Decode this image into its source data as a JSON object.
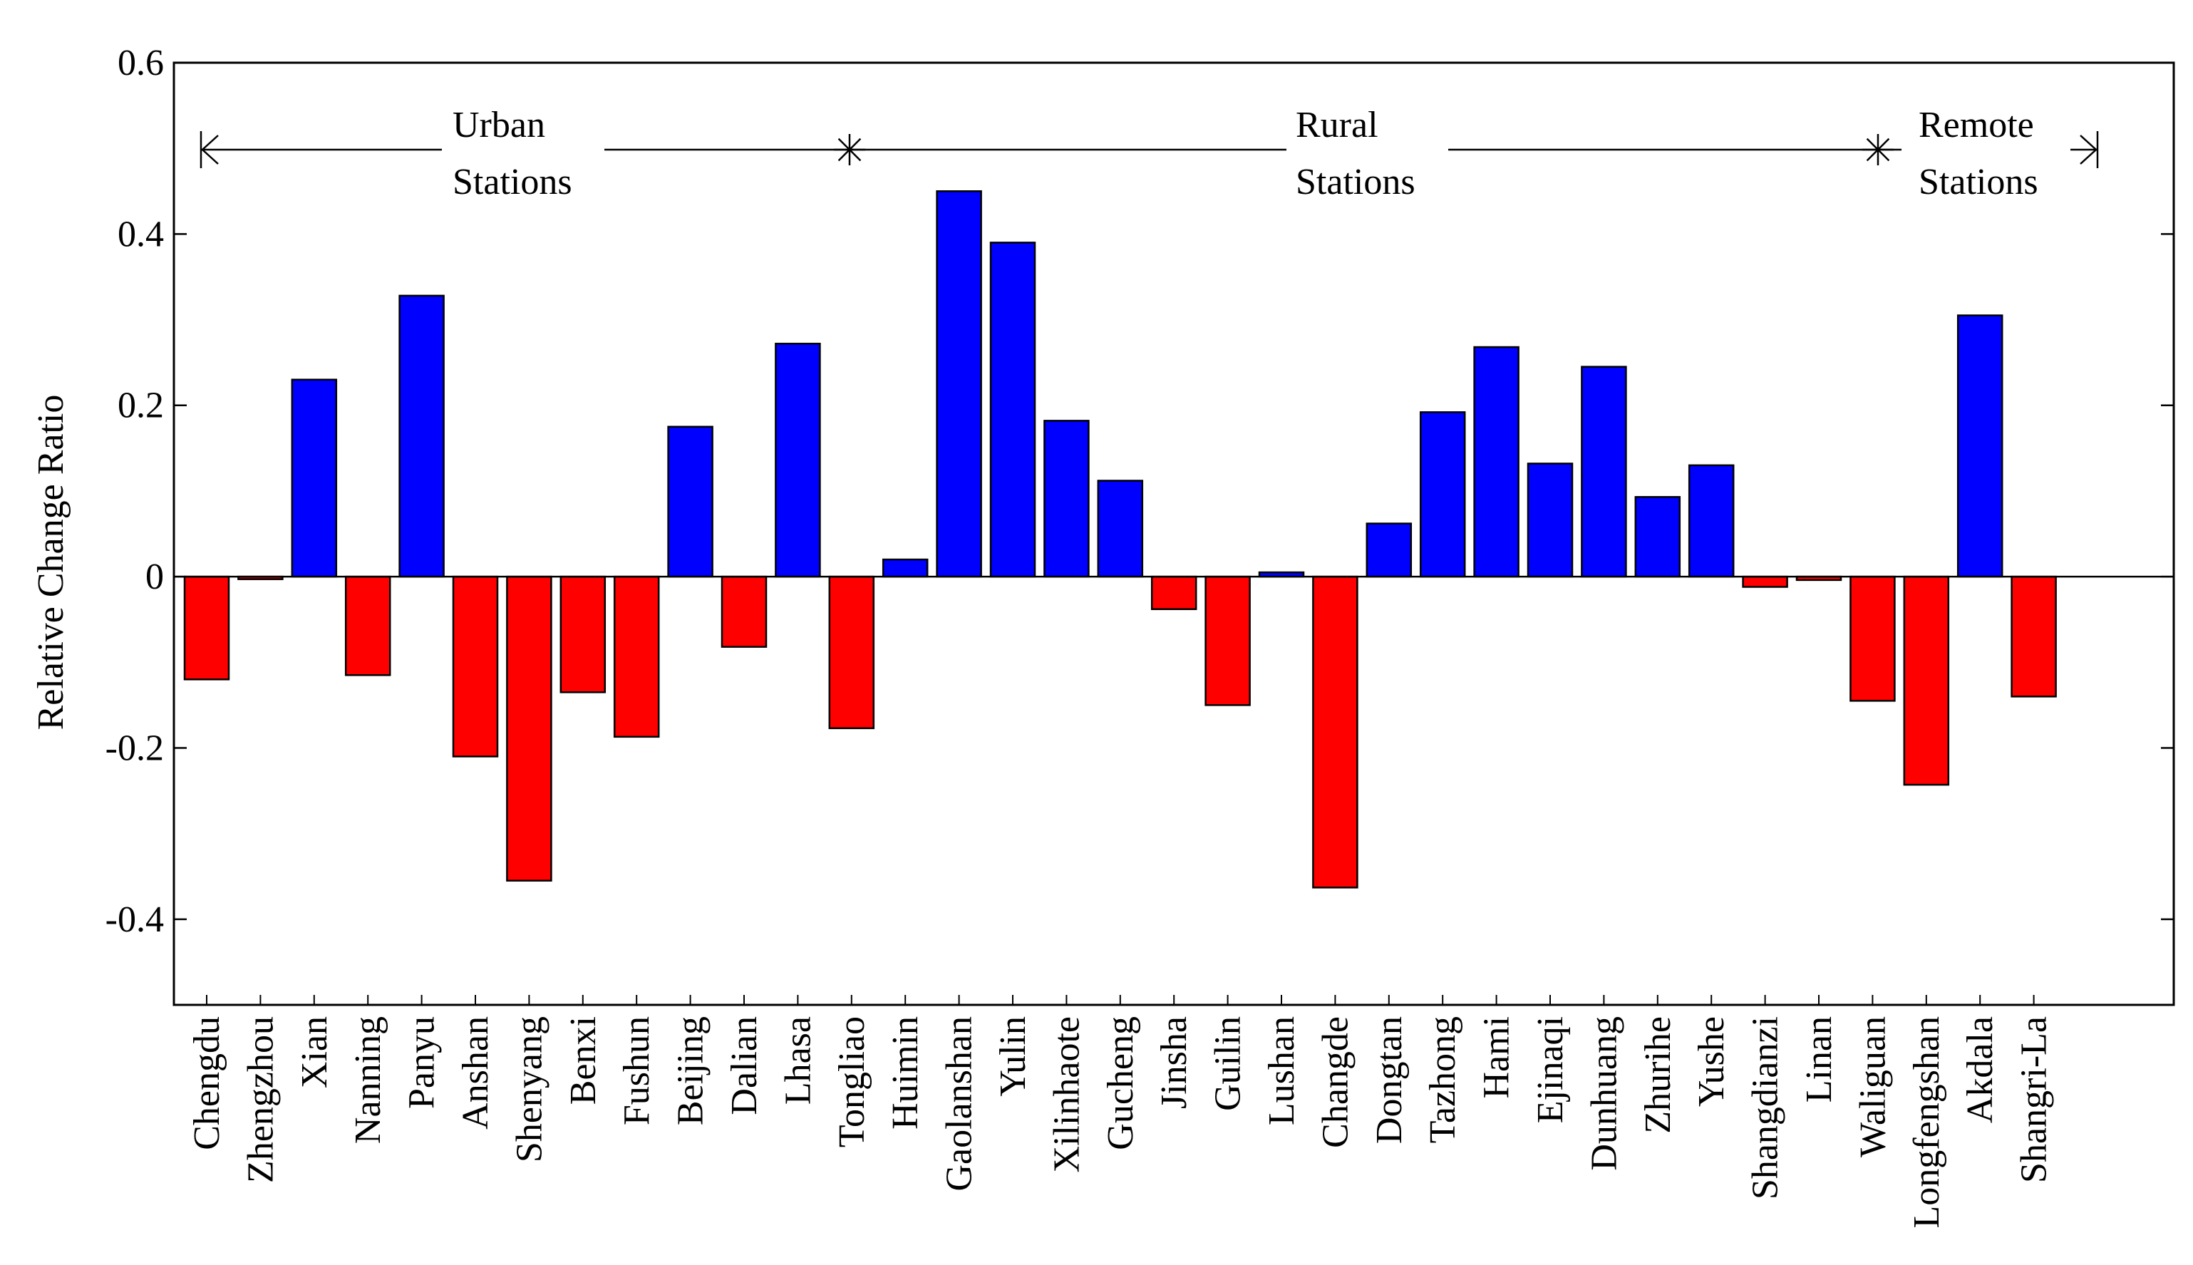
{
  "chart_data": {
    "type": "bar",
    "title": "",
    "xlabel": "",
    "ylabel": "Relative Change Ratio",
    "ylim": [
      -0.5,
      0.6
    ],
    "yticks": [
      -0.4,
      -0.2,
      0,
      0.2,
      0.4,
      0.6
    ],
    "ytick_labels": [
      "-0.4",
      "-0.2",
      "0",
      "0.2",
      "0.4",
      "0.6"
    ],
    "grid": false,
    "colors": {
      "positive": "#0000ff",
      "negative": "#ff0000",
      "outline": "#000000"
    },
    "categories": [
      "Chengdu",
      "Zhengzhou",
      "Xian",
      "Nanning",
      "Panyu",
      "Anshan",
      "Shenyang",
      "Benxi",
      "Fushun",
      "Beijing",
      "Dalian",
      "Lhasa",
      "Tongliao",
      "Huimin",
      "Gaolanshan",
      "Yulin",
      "Xilinhaote",
      "Gucheng",
      "Jinsha",
      "Guilin",
      "Lushan",
      "Changde",
      "Dongtan",
      "Tazhong",
      "Hami",
      "Ejinaqi",
      "Dunhuang",
      "Zhurihe",
      "Yushe",
      "Shangdianzi",
      "Linan",
      "Waliguan",
      "Longfengshan",
      "Akdala",
      "Shangri-La"
    ],
    "values": [
      -0.12,
      -0.003,
      0.23,
      -0.115,
      0.328,
      -0.21,
      -0.355,
      -0.135,
      -0.187,
      0.175,
      -0.082,
      0.272,
      -0.177,
      0.02,
      0.45,
      0.39,
      0.182,
      0.112,
      -0.038,
      -0.15,
      0.005,
      -0.363,
      0.062,
      0.192,
      0.268,
      0.132,
      0.245,
      0.093,
      0.13,
      -0.012,
      -0.004,
      -0.145,
      -0.243,
      0.305,
      -0.14
    ],
    "groups": [
      {
        "label_line1": "Urban",
        "label_line2": "Stations",
        "start_index": 0,
        "end_index": 11
      },
      {
        "label_line1": "Rural",
        "label_line2": "Stations",
        "start_index": 12,
        "end_index": 30
      },
      {
        "label_line1": "Remote",
        "label_line2": "Stations",
        "start_index": 31,
        "end_index": 34
      }
    ]
  }
}
